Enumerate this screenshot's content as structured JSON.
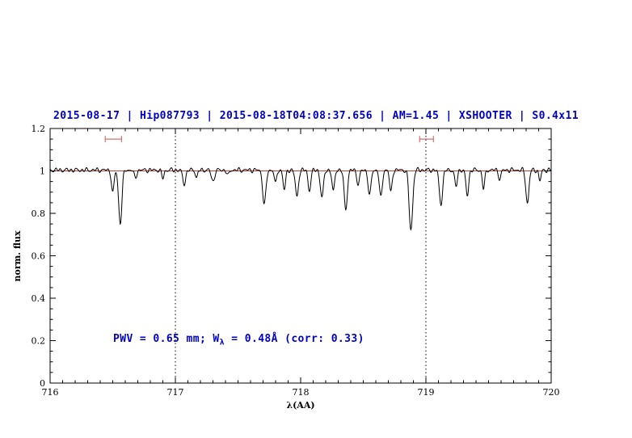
{
  "chart_data": {
    "type": "line",
    "title": "2015-08-17 | Hip087793 | 2015-08-18T04:08:37.656 | AM=1.45 | XSHOOTER | S0.4x11",
    "xlabel": "λ(AA)",
    "ylabel": "norm. flux",
    "xlim": [
      716,
      720
    ],
    "ylim": [
      0,
      1.2
    ],
    "x_ticks": [
      716,
      717,
      718,
      719,
      720
    ],
    "x_tick_labels": [
      "716",
      "717",
      "718",
      "719",
      "720"
    ],
    "y_ticks": [
      0,
      0.2,
      0.4,
      0.6,
      0.8,
      1.0,
      1.2
    ],
    "y_tick_labels": [
      "0",
      "0.2",
      "0.4",
      "0.6",
      "0.8",
      "1",
      "1.2"
    ],
    "x_minor_step": 0.1,
    "y_minor_step": 0.05,
    "grid": false,
    "legend": false,
    "dotted_vlines": [
      717,
      719
    ],
    "continuum_level": 1.0,
    "marker_regions": [
      {
        "x_start": 716.44,
        "x_end": 716.57,
        "y": 1.15
      },
      {
        "x_start": 718.95,
        "x_end": 719.06,
        "y": 1.15
      }
    ],
    "absorption_lines": [
      {
        "center": 716.5,
        "min_flux": 0.89,
        "sigma": 0.01
      },
      {
        "center": 716.56,
        "min_flux": 0.75,
        "sigma": 0.013
      },
      {
        "center": 716.68,
        "min_flux": 0.962,
        "sigma": 0.01
      },
      {
        "center": 716.9,
        "min_flux": 0.962,
        "sigma": 0.01
      },
      {
        "center": 717.07,
        "min_flux": 0.935,
        "sigma": 0.012
      },
      {
        "center": 717.17,
        "min_flux": 0.965,
        "sigma": 0.009
      },
      {
        "center": 717.3,
        "min_flux": 0.945,
        "sigma": 0.012
      },
      {
        "center": 717.42,
        "min_flux": 0.972,
        "sigma": 0.009
      },
      {
        "center": 717.71,
        "min_flux": 0.838,
        "sigma": 0.013
      },
      {
        "center": 717.8,
        "min_flux": 0.935,
        "sigma": 0.009
      },
      {
        "center": 717.87,
        "min_flux": 0.905,
        "sigma": 0.01
      },
      {
        "center": 717.97,
        "min_flux": 0.873,
        "sigma": 0.012
      },
      {
        "center": 718.07,
        "min_flux": 0.905,
        "sigma": 0.011
      },
      {
        "center": 718.17,
        "min_flux": 0.868,
        "sigma": 0.012
      },
      {
        "center": 718.26,
        "min_flux": 0.895,
        "sigma": 0.01
      },
      {
        "center": 718.36,
        "min_flux": 0.82,
        "sigma": 0.013
      },
      {
        "center": 718.46,
        "min_flux": 0.928,
        "sigma": 0.01
      },
      {
        "center": 718.55,
        "min_flux": 0.875,
        "sigma": 0.011
      },
      {
        "center": 718.64,
        "min_flux": 0.868,
        "sigma": 0.011
      },
      {
        "center": 718.72,
        "min_flux": 0.895,
        "sigma": 0.01
      },
      {
        "center": 718.88,
        "min_flux": 0.715,
        "sigma": 0.014
      },
      {
        "center": 719.12,
        "min_flux": 0.84,
        "sigma": 0.013
      },
      {
        "center": 719.24,
        "min_flux": 0.92,
        "sigma": 0.01
      },
      {
        "center": 719.33,
        "min_flux": 0.88,
        "sigma": 0.011
      },
      {
        "center": 719.46,
        "min_flux": 0.912,
        "sigma": 0.01
      },
      {
        "center": 719.59,
        "min_flux": 0.955,
        "sigma": 0.009
      },
      {
        "center": 719.81,
        "min_flux": 0.843,
        "sigma": 0.012
      },
      {
        "center": 719.91,
        "min_flux": 0.95,
        "sigma": 0.009
      }
    ],
    "annotation": {
      "prefix": "PWV = 0.65 mm; W",
      "subscript": "λ",
      "suffix": " = 0.48Å (corr: 0.33)",
      "full_text": "PWV = 0.65 mm; Wλ = 0.48Å (corr: 0.33)"
    },
    "colors": {
      "title_text": "#0000cd",
      "annotation_text": "#0000cd",
      "spectrum": "#000000",
      "continuum": "#c04040",
      "marker": "#d97070",
      "dotted": "#000000",
      "axis": "#000000"
    }
  }
}
